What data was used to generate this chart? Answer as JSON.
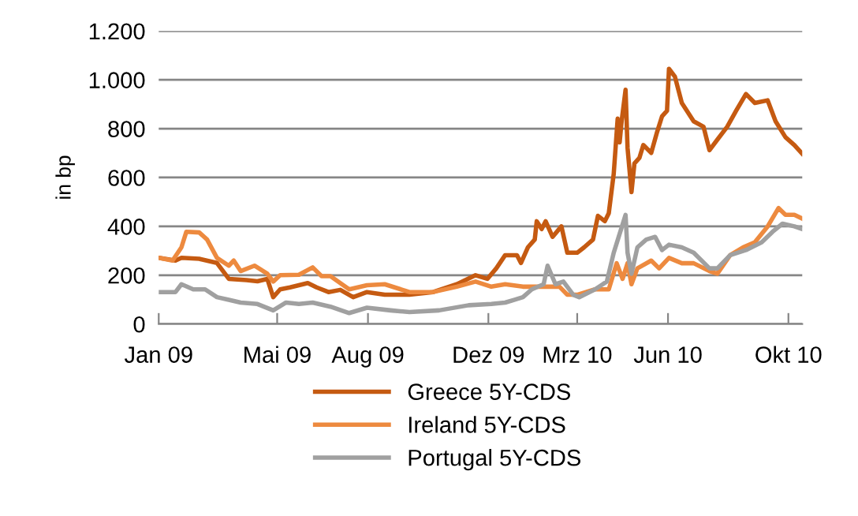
{
  "chart_data": {
    "type": "line",
    "ylabel": "in bp",
    "xlim": [
      "2009-01-01",
      "2010-10-15"
    ],
    "xticks": [
      {
        "value": "2009-01-01",
        "label": "Jan 09"
      },
      {
        "value": "2009-05-01",
        "label": "Mai 09"
      },
      {
        "value": "2009-08-01",
        "label": "Aug 09"
      },
      {
        "value": "2009-12-01",
        "label": "Dez 09"
      },
      {
        "value": "2010-03-01",
        "label": "Mrz 10"
      },
      {
        "value": "2010-06-01",
        "label": "Jun 10"
      },
      {
        "value": "2010-10-01",
        "label": "Okt 10"
      }
    ],
    "ylim": [
      0,
      1200
    ],
    "yticks": [
      0,
      200,
      400,
      600,
      800,
      {
        "value": 1000,
        "label": "1.000"
      },
      {
        "value": 1200,
        "label": "1.200"
      }
    ],
    "grid": "y",
    "legend": "bottom",
    "line_style": "solid",
    "marker": "none",
    "series": [
      {
        "name": "Greece 5Y-CDS",
        "color": "#c55a11",
        "x": [
          "2009-01-01",
          "2009-01-18",
          "2009-01-24",
          "2009-02-11",
          "2009-03-01",
          "2009-03-13",
          "2009-03-31",
          "2009-04-11",
          "2009-04-21",
          "2009-04-27",
          "2009-05-04",
          "2009-05-14",
          "2009-06-01",
          "2009-06-10",
          "2009-06-22",
          "2009-07-04",
          "2009-07-17",
          "2009-07-31",
          "2009-08-18",
          "2009-09-12",
          "2009-10-06",
          "2009-10-30",
          "2009-11-18",
          "2009-11-30",
          "2009-12-09",
          "2009-12-18",
          "2009-12-30",
          "2010-01-03",
          "2010-01-10",
          "2010-01-17",
          "2010-01-19",
          "2010-01-24",
          "2010-01-28",
          "2010-02-04",
          "2010-02-13",
          "2010-02-19",
          "2010-03-01",
          "2010-03-08",
          "2010-03-17",
          "2010-03-22",
          "2010-03-29",
          "2010-04-02",
          "2010-04-07",
          "2010-04-11",
          "2010-04-13",
          "2010-04-15",
          "2010-04-19",
          "2010-04-21",
          "2010-04-25",
          "2010-04-28",
          "2010-05-03",
          "2010-05-07",
          "2010-05-15",
          "2010-05-21",
          "2010-05-26",
          "2010-05-31",
          "2010-06-02",
          "2010-06-08",
          "2010-06-15",
          "2010-06-27",
          "2010-07-07",
          "2010-07-13",
          "2010-07-21",
          "2010-07-31",
          "2010-08-09",
          "2010-08-19",
          "2010-08-28",
          "2010-09-10",
          "2010-09-18",
          "2010-09-28",
          "2010-10-07",
          "2010-10-15"
        ],
        "values": [
          271,
          260,
          271,
          267,
          250,
          185,
          180,
          175,
          185,
          110,
          142,
          150,
          168,
          150,
          131,
          140,
          110,
          131,
          120,
          120,
          131,
          163,
          200,
          185,
          228,
          282,
          282,
          250,
          314,
          346,
          421,
          389,
          421,
          357,
          400,
          292,
          292,
          314,
          346,
          443,
          421,
          454,
          615,
          841,
          744,
          830,
          959,
          722,
          540,
          658,
          680,
          733,
          701,
          787,
          851,
          873,
          1045,
          1013,
          905,
          830,
          808,
          712,
          755,
          808,
          873,
          942,
          905,
          916,
          830,
          765,
          733,
          697
        ]
      },
      {
        "name": "Ireland 5Y-CDS",
        "color": "#ed8a3f",
        "x": [
          "2009-01-01",
          "2009-01-15",
          "2009-01-24",
          "2009-01-29",
          "2009-02-11",
          "2009-02-19",
          "2009-03-01",
          "2009-03-13",
          "2009-03-18",
          "2009-03-25",
          "2009-04-08",
          "2009-04-21",
          "2009-04-27",
          "2009-05-04",
          "2009-05-23",
          "2009-06-06",
          "2009-06-15",
          "2009-06-24",
          "2009-07-13",
          "2009-07-31",
          "2009-08-18",
          "2009-09-12",
          "2009-10-06",
          "2009-10-30",
          "2009-11-18",
          "2009-12-04",
          "2009-12-18",
          "2010-01-05",
          "2010-01-24",
          "2010-02-11",
          "2010-02-19",
          "2010-03-01",
          "2010-03-19",
          "2010-04-02",
          "2010-04-10",
          "2010-04-16",
          "2010-04-21",
          "2010-04-25",
          "2010-05-01",
          "2010-05-15",
          "2010-05-23",
          "2010-06-02",
          "2010-06-15",
          "2010-06-27",
          "2010-07-13",
          "2010-07-21",
          "2010-08-03",
          "2010-08-16",
          "2010-08-28",
          "2010-09-10",
          "2010-09-21",
          "2010-09-28",
          "2010-10-07",
          "2010-10-15"
        ],
        "values": [
          271,
          260,
          314,
          378,
          375,
          346,
          271,
          239,
          260,
          217,
          239,
          206,
          174,
          200,
          202,
          232,
          196,
          196,
          142,
          159,
          163,
          131,
          131,
          153,
          174,
          153,
          163,
          153,
          153,
          153,
          120,
          120,
          142,
          142,
          249,
          185,
          249,
          163,
          228,
          260,
          228,
          271,
          249,
          249,
          217,
          206,
          282,
          314,
          335,
          400,
          475,
          447,
          447,
          432
        ]
      },
      {
        "name": "Portugal 5Y-CDS",
        "color": "#a0a0a0",
        "x": [
          "2009-01-01",
          "2009-01-18",
          "2009-01-24",
          "2009-02-05",
          "2009-02-17",
          "2009-03-01",
          "2009-03-13",
          "2009-03-25",
          "2009-04-11",
          "2009-04-27",
          "2009-05-10",
          "2009-05-23",
          "2009-06-06",
          "2009-06-24",
          "2009-07-13",
          "2009-07-31",
          "2009-08-24",
          "2009-09-12",
          "2009-10-12",
          "2009-11-11",
          "2009-12-04",
          "2009-12-18",
          "2009-12-27",
          "2010-01-05",
          "2010-01-14",
          "2010-01-26",
          "2010-01-30",
          "2010-02-07",
          "2010-02-15",
          "2010-02-25",
          "2010-03-03",
          "2010-03-19",
          "2010-03-31",
          "2010-04-07",
          "2010-04-19",
          "2010-04-21",
          "2010-04-25",
          "2010-05-01",
          "2010-05-10",
          "2010-05-19",
          "2010-05-26",
          "2010-06-02",
          "2010-06-15",
          "2010-06-27",
          "2010-07-13",
          "2010-07-21",
          "2010-08-03",
          "2010-08-19",
          "2010-09-04",
          "2010-09-15",
          "2010-09-25",
          "2010-10-07",
          "2010-10-15"
        ],
        "values": [
          131,
          131,
          163,
          142,
          142,
          110,
          99,
          88,
          82,
          56,
          88,
          82,
          88,
          71,
          45,
          67,
          56,
          49,
          56,
          77,
          82,
          88,
          99,
          110,
          142,
          163,
          239,
          163,
          174,
          120,
          110,
          142,
          174,
          292,
          447,
          292,
          206,
          314,
          346,
          357,
          303,
          325,
          314,
          292,
          228,
          228,
          282,
          303,
          335,
          378,
          411,
          400,
          389
        ]
      }
    ]
  }
}
